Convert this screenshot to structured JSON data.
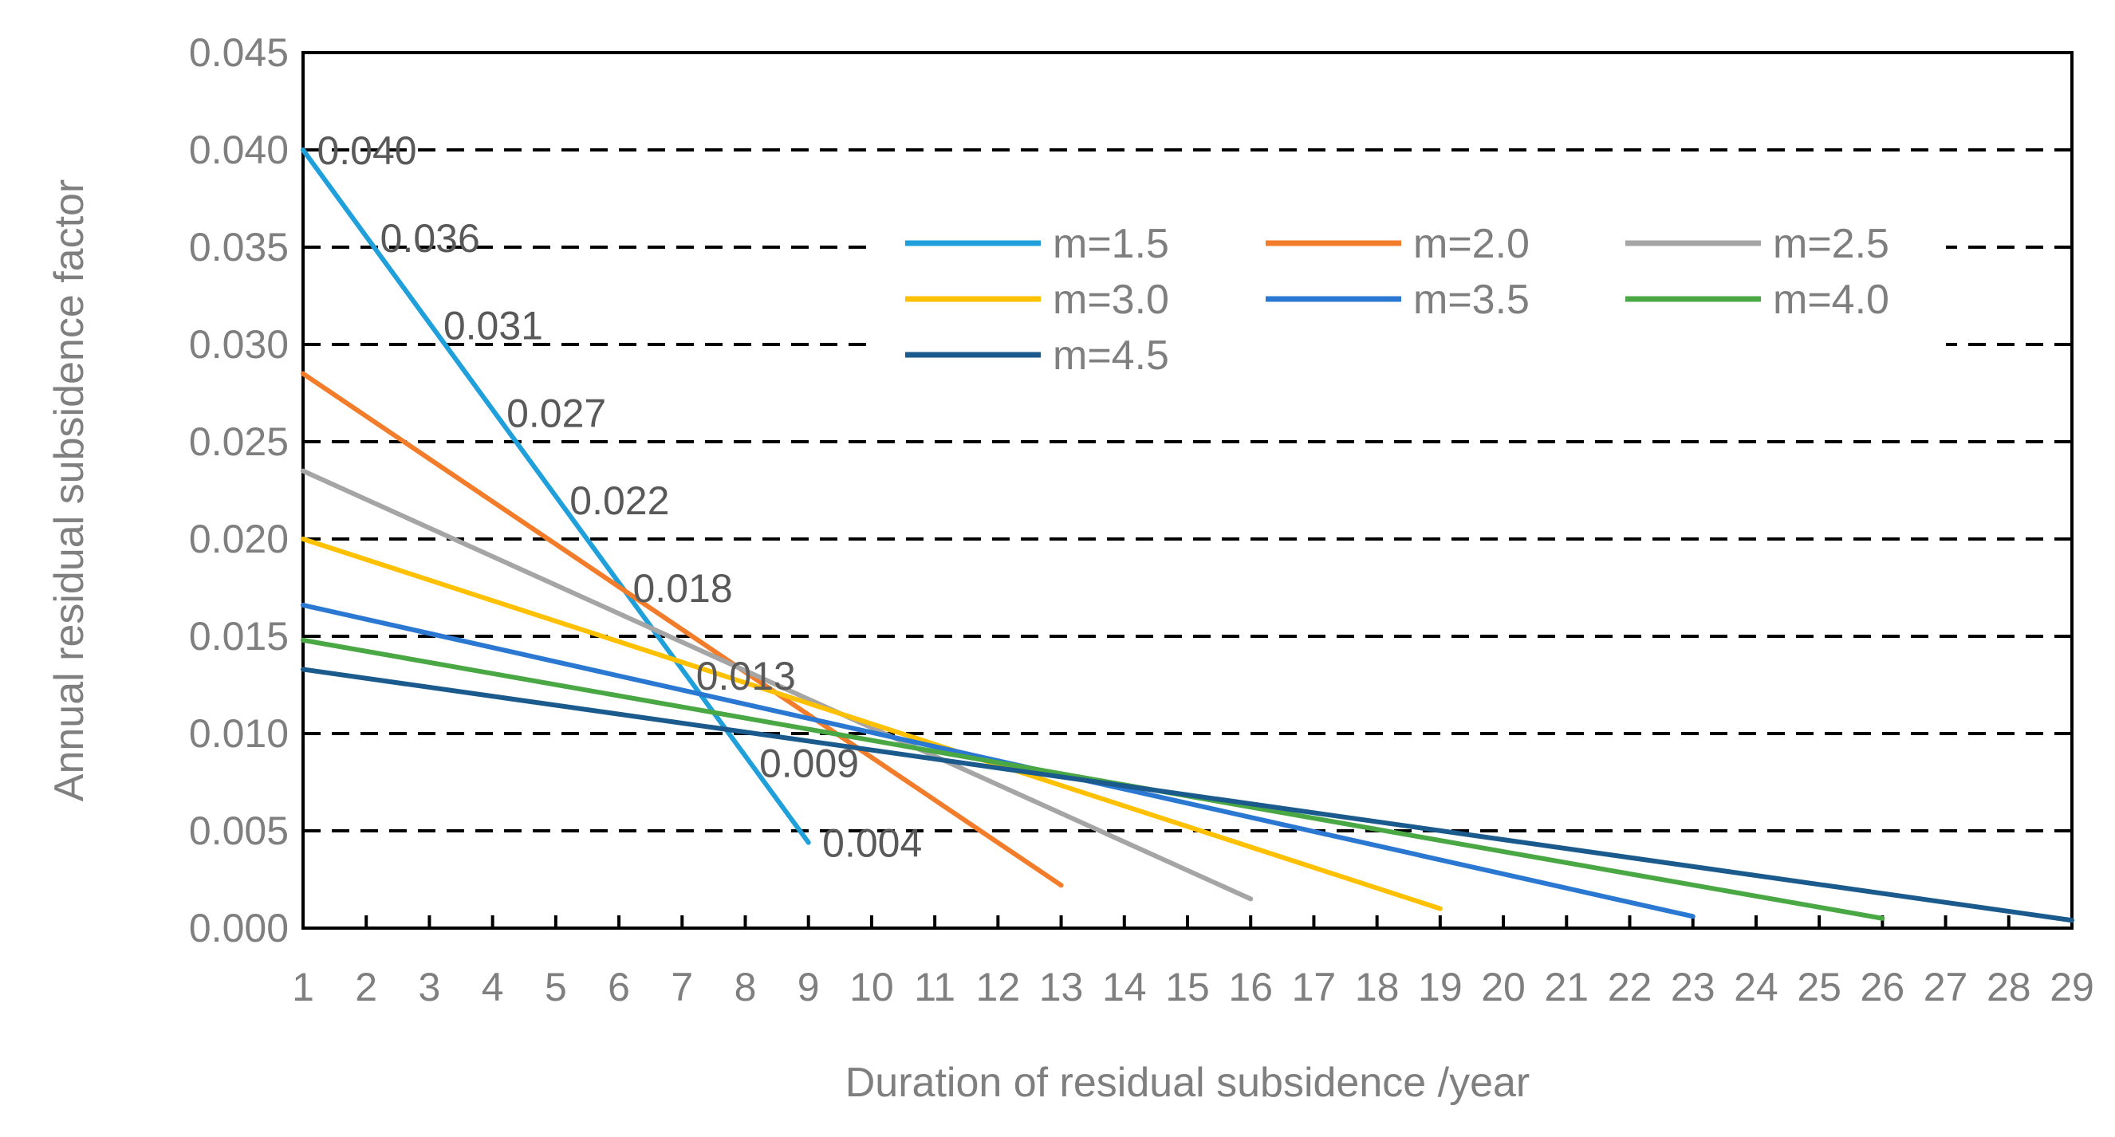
{
  "chart_data": {
    "type": "line",
    "title": "",
    "xlabel": "Duration of residual subsidence /year",
    "ylabel": "Annual residual subsidence factor",
    "xlim": [
      1,
      29
    ],
    "ylim": [
      0,
      0.045
    ],
    "x_ticks": [
      "1",
      "2",
      "3",
      "4",
      "5",
      "6",
      "7",
      "8",
      "9",
      "10",
      "11",
      "12",
      "13",
      "14",
      "15",
      "16",
      "17",
      "18",
      "19",
      "20",
      "21",
      "22",
      "23",
      "24",
      "25",
      "26",
      "27",
      "28",
      "29"
    ],
    "y_ticks": [
      "0.000",
      "0.005",
      "0.010",
      "0.015",
      "0.020",
      "0.025",
      "0.030",
      "0.035",
      "0.040",
      "0.045"
    ],
    "grid": "horizontal dashed",
    "legend_position": "top-center",
    "series": [
      {
        "name": "m=1.5",
        "color": "#1fa0db",
        "x": [
          1,
          9
        ],
        "y": [
          0.04,
          0.0044
        ]
      },
      {
        "name": "m=2.0",
        "color": "#f27c2a",
        "x": [
          1,
          13
        ],
        "y": [
          0.0285,
          0.0022
        ]
      },
      {
        "name": "m=2.5",
        "color": "#a5a5a5",
        "x": [
          1,
          16
        ],
        "y": [
          0.0235,
          0.0015
        ]
      },
      {
        "name": "m=3.0",
        "color": "#ffc000",
        "x": [
          1,
          19
        ],
        "y": [
          0.02,
          0.001
        ]
      },
      {
        "name": "m=3.5",
        "color": "#2a78d2",
        "x": [
          1,
          23
        ],
        "y": [
          0.0166,
          0.0006
        ]
      },
      {
        "name": "m=4.0",
        "color": "#4aa844",
        "x": [
          1,
          26
        ],
        "y": [
          0.0148,
          0.0005
        ]
      },
      {
        "name": "m=4.5",
        "color": "#1a5a8c",
        "x": [
          1,
          29
        ],
        "y": [
          0.0133,
          0.0004
        ]
      }
    ],
    "annotations": [
      {
        "x": 1,
        "y": 0.04,
        "text": "0.040"
      },
      {
        "x": 2,
        "y": 0.0355,
        "text": "0.036"
      },
      {
        "x": 3,
        "y": 0.031,
        "text": "0.031"
      },
      {
        "x": 4,
        "y": 0.0265,
        "text": "0.027"
      },
      {
        "x": 5,
        "y": 0.022,
        "text": "0.022"
      },
      {
        "x": 6,
        "y": 0.0175,
        "text": "0.018"
      },
      {
        "x": 7,
        "y": 0.013,
        "text": "0.013"
      },
      {
        "x": 8,
        "y": 0.0085,
        "text": "0.009"
      },
      {
        "x": 9,
        "y": 0.0044,
        "text": "0.004"
      }
    ]
  }
}
